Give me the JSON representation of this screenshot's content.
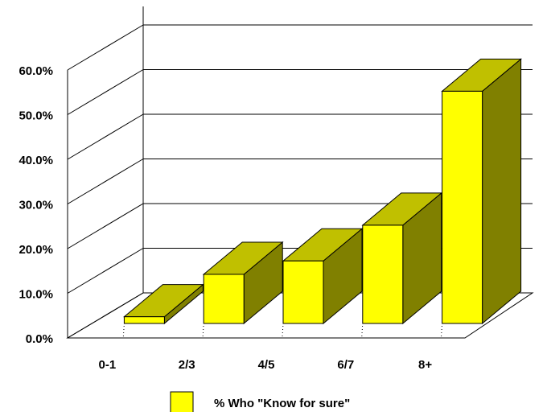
{
  "chart_data": {
    "type": "bar",
    "style": "3d",
    "categories": [
      "0-1",
      "2/3",
      "4/5",
      "6/7",
      "8+"
    ],
    "series": [
      {
        "name": "% Who \"Know for sure\"",
        "values": [
          1.5,
          11.0,
          14.0,
          22.0,
          52.0
        ]
      }
    ],
    "ylim": [
      0,
      60
    ],
    "ytick_values": [
      0,
      10,
      20,
      30,
      40,
      50,
      60
    ],
    "ytick_labels": [
      "0.0%",
      "10.0%",
      "20.0%",
      "30.0%",
      "40.0%",
      "50.0%",
      "60.0%"
    ],
    "grid": true,
    "legend_position": "bottom-center",
    "colors": {
      "bar_front": "#ffff00",
      "bar_top": "#c0c000",
      "bar_side": "#808000",
      "grid": "#000000",
      "background": "#ffffff"
    }
  }
}
